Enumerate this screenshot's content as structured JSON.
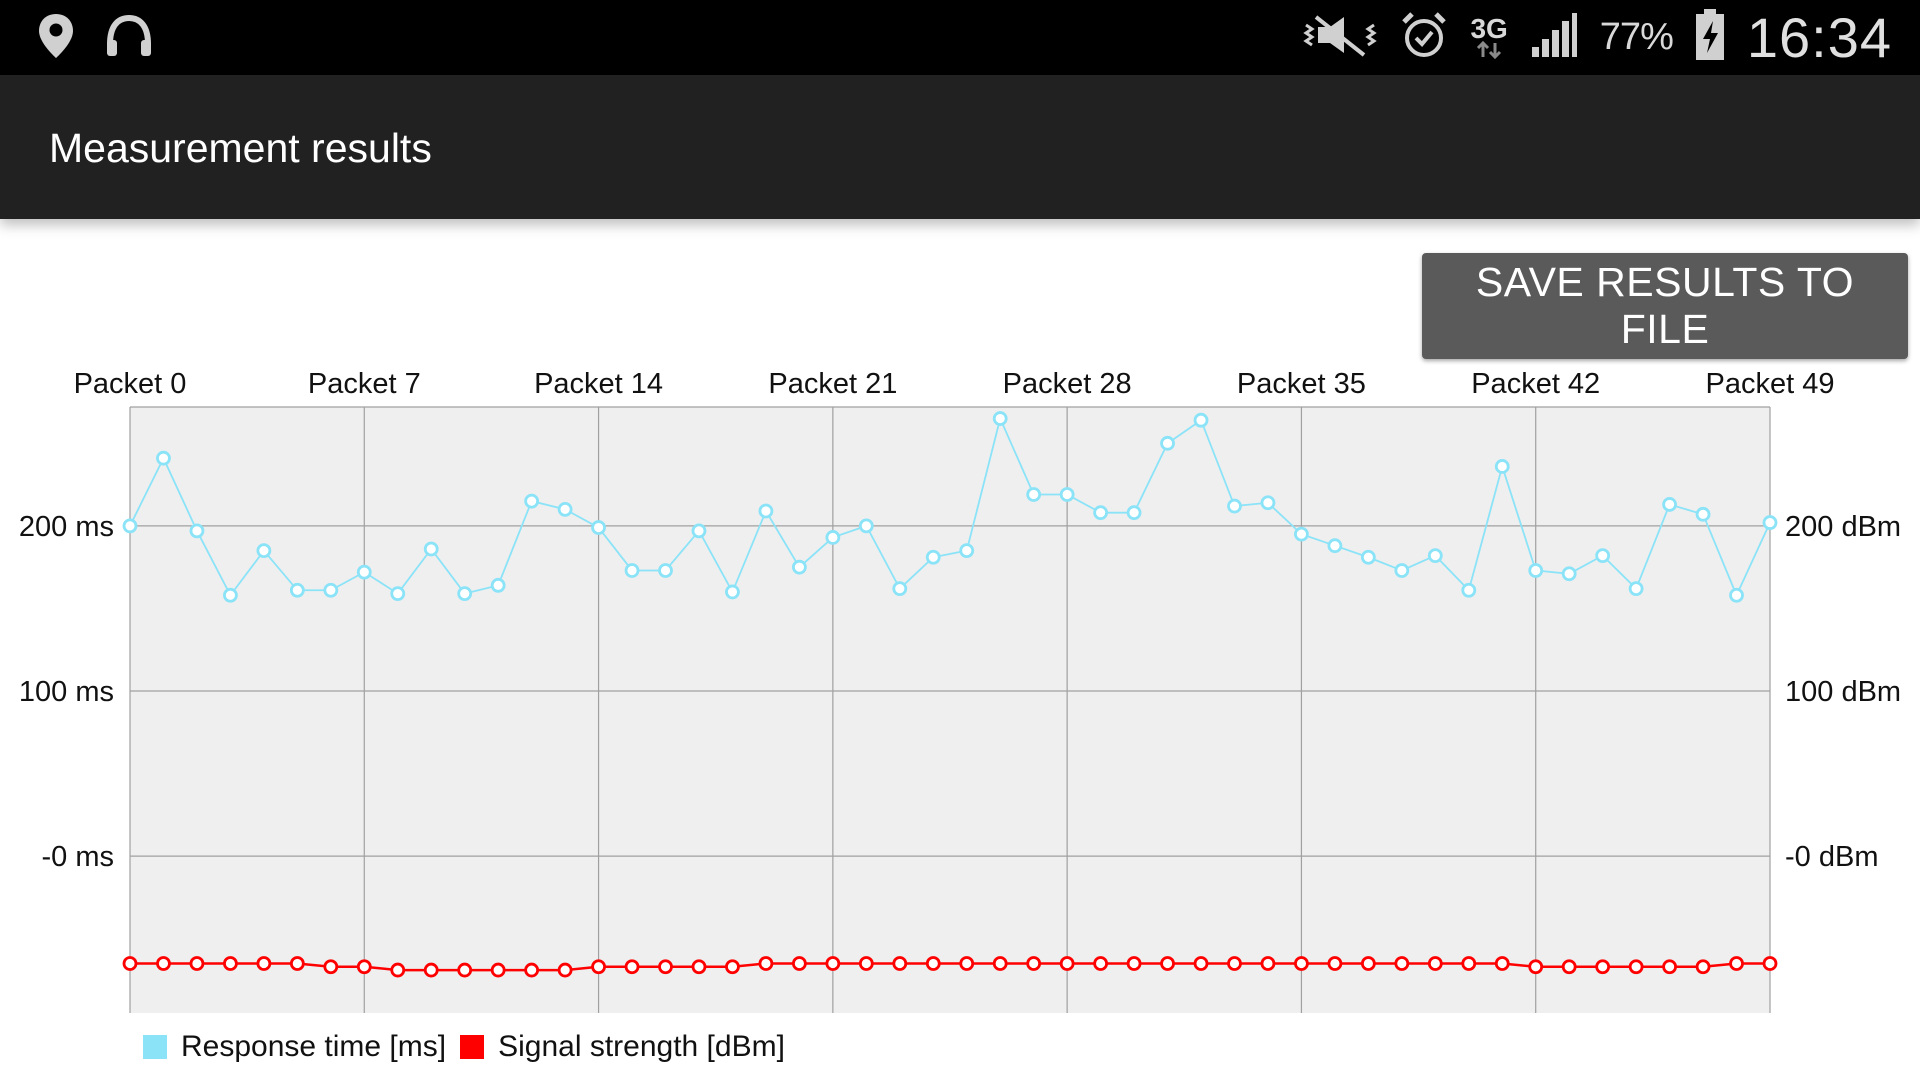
{
  "status_bar": {
    "battery_percent": "77%",
    "network_type": "3G",
    "time": "16:34",
    "icons": [
      "location-icon",
      "headset-icon",
      "mute-vibrate-icon",
      "alarm-icon",
      "signal-icon",
      "battery-charging-icon"
    ]
  },
  "app_bar": {
    "title": "Measurement results"
  },
  "actions": {
    "save_label": "SAVE RESULTS TO FILE"
  },
  "colors": {
    "response_series": "#8be3f8",
    "signal_series": "#ff0000",
    "plot_background": "#efefef",
    "grid": "#a0a0a0",
    "button": "#5a5a5a"
  },
  "chart_data": {
    "type": "line",
    "x_tick_labels": [
      "Packet 0",
      "Packet 7",
      "Packet 14",
      "Packet 21",
      "Packet 28",
      "Packet 35",
      "Packet 42",
      "Packet 49"
    ],
    "y_left_tick_labels": [
      "200 ms",
      "100 ms",
      "-0 ms"
    ],
    "y_right_tick_labels": [
      "200 dBm",
      "100 dBm",
      "-0 dBm"
    ],
    "y_ticks": [
      200,
      100,
      0
    ],
    "ylim": [
      -95,
      272
    ],
    "x": [
      0,
      1,
      2,
      3,
      4,
      5,
      6,
      7,
      8,
      9,
      10,
      11,
      12,
      13,
      14,
      15,
      16,
      17,
      18,
      19,
      20,
      21,
      22,
      23,
      24,
      25,
      26,
      27,
      28,
      29,
      30,
      31,
      32,
      33,
      34,
      35,
      36,
      37,
      38,
      39,
      40,
      41,
      42,
      43,
      44,
      45,
      46,
      47,
      48,
      49
    ],
    "series": [
      {
        "name": "Response time [ms]",
        "axis": "left",
        "values": [
          200,
          241,
          197,
          158,
          185,
          161,
          161,
          172,
          159,
          186,
          159,
          164,
          215,
          210,
          199,
          173,
          173,
          197,
          160,
          209,
          175,
          193,
          200,
          162,
          181,
          185,
          265,
          219,
          219,
          208,
          208,
          250,
          264,
          212,
          214,
          195,
          188,
          181,
          173,
          182,
          161,
          236,
          173,
          171,
          182,
          162,
          213,
          207,
          158,
          202
        ]
      },
      {
        "name": "Signal strength [dBm]",
        "axis": "right",
        "values": [
          -65,
          -65,
          -65,
          -65,
          -65,
          -65,
          -67,
          -67,
          -69,
          -69,
          -69,
          -69,
          -69,
          -69,
          -67,
          -67,
          -67,
          -67,
          -67,
          -65,
          -65,
          -65,
          -65,
          -65,
          -65,
          -65,
          -65,
          -65,
          -65,
          -65,
          -65,
          -65,
          -65,
          -65,
          -65,
          -65,
          -65,
          -65,
          -65,
          -65,
          -65,
          -65,
          -67,
          -67,
          -67,
          -67,
          -67,
          -67,
          -65,
          -65
        ]
      }
    ],
    "grid": true,
    "legend_position": "bottom-left"
  }
}
